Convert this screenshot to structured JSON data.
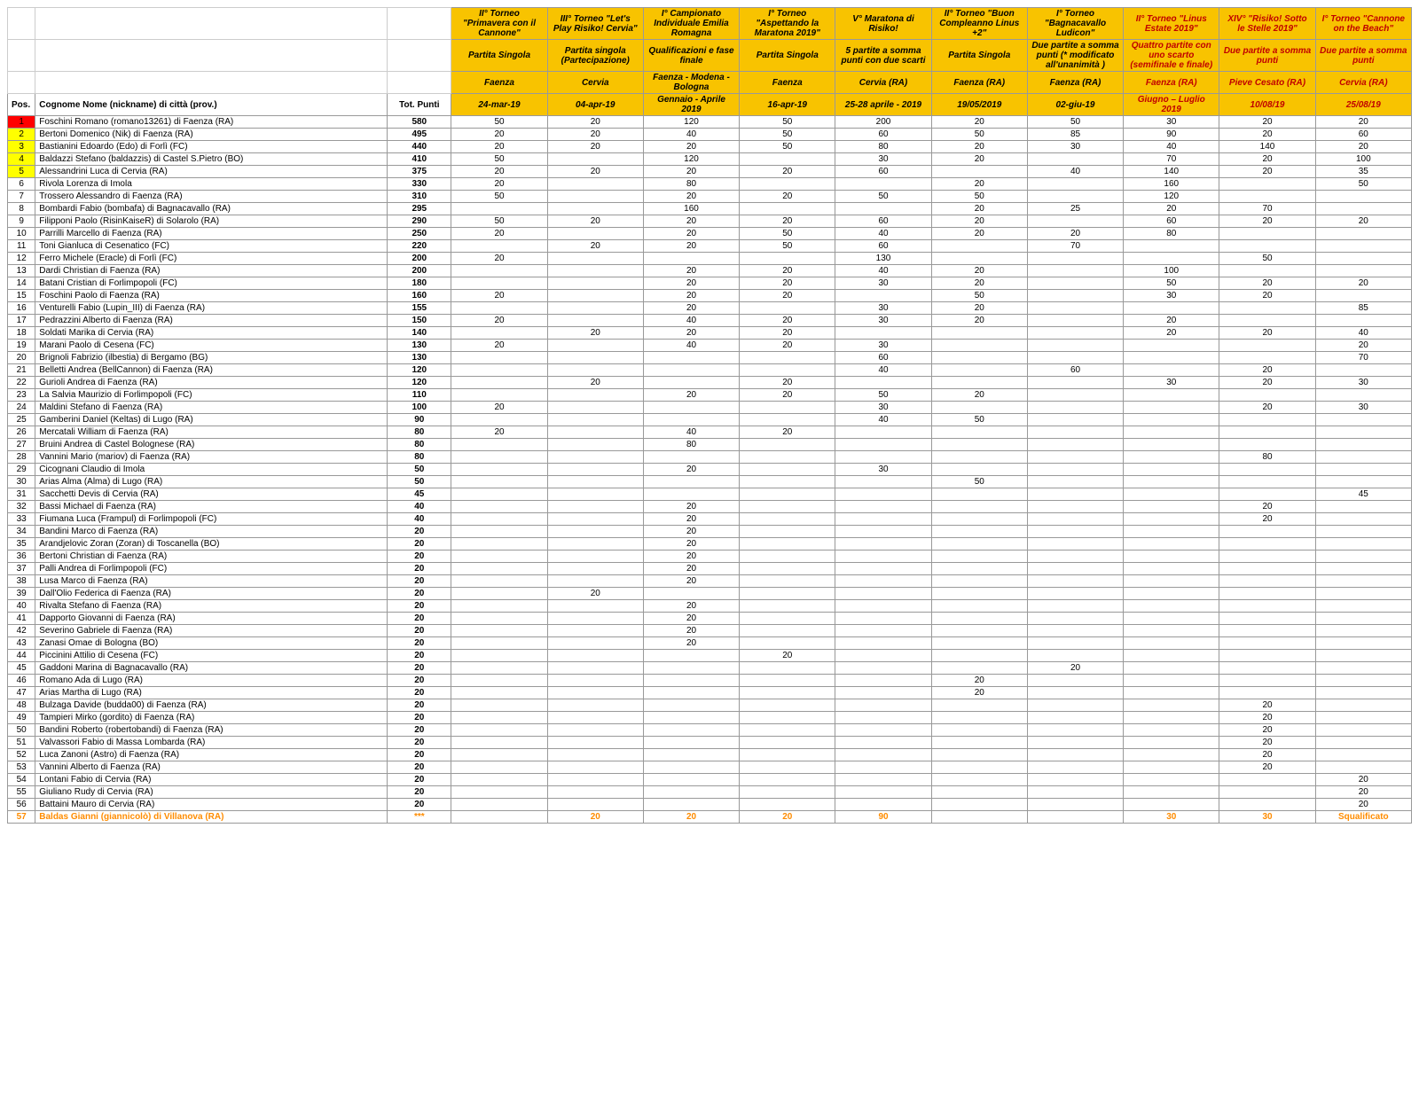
{
  "header_labels": {
    "pos": "Pos.",
    "name": "Cognome Nome (nickname) di città (prov.)",
    "tot": "Tot. Punti"
  },
  "events": [
    {
      "title": "II° Torneo \"Primavera con il Cannone\"",
      "sub": "Partita Singola",
      "loc": "Faenza",
      "date": "24-mar-19"
    },
    {
      "title": "III° Torneo \"Let's Play Risiko! Cervia\"",
      "sub": "Partita singola (Partecipazione)",
      "loc": "Cervia",
      "date": "04-apr-19"
    },
    {
      "title": "I° Campionato Individuale Emilia Romagna",
      "sub": "Qualificazioni e fase finale",
      "loc": "Faenza - Modena - Bologna",
      "date": "Gennaio - Aprile 2019"
    },
    {
      "title": "I° Torneo \"Aspettando la Maratona 2019\"",
      "sub": "Partita Singola",
      "loc": "Faenza",
      "date": "16-apr-19"
    },
    {
      "title": "V° Maratona di Risiko!",
      "sub": "5 partite a somma punti con due scarti",
      "loc": "Cervia (RA)",
      "date": "25-28 aprile - 2019"
    },
    {
      "title": "II° Torneo \"Buon Compleanno Linus +2\"",
      "sub": "Partita Singola",
      "loc": "Faenza (RA)",
      "date": "19/05/2019"
    },
    {
      "title": "I° Torneo \"Bagnacavallo Ludicon\"",
      "sub": "Due partite a somma punti (* modificato all'unanimità )",
      "loc": "Faenza (RA)",
      "date": "02-giu-19"
    },
    {
      "title": "II° Torneo \"Linus Estate 2019\"",
      "sub": "Quattro partite con uno scarto (semifinale e finale)",
      "loc": "Faenza (RA)",
      "date": "Giugno – Luglio 2019",
      "red": true
    },
    {
      "title": "XIV° \"Risiko! Sotto le Stelle 2019\"",
      "sub": "Due partite a somma punti",
      "loc": "Pieve Cesato (RA)",
      "date": "10/08/19",
      "red": true
    },
    {
      "title": "I° Torneo \"Cannone on the Beach\"",
      "sub": "Due partite a somma punti",
      "loc": "Cervia (RA)",
      "date": "25/08/19",
      "red": true
    }
  ],
  "pos_colors": {
    "1": "#ff0000",
    "2": "#ffff00",
    "3": "#ffff00",
    "4": "#ffff00",
    "5": "#ffff00"
  },
  "row_text_colors": {
    "57": "#ff8c00"
  },
  "rows": [
    {
      "pos": 1,
      "name": "Foschini Romano (romano13261) di Faenza (RA)",
      "tot": "580",
      "v": [
        "50",
        "20",
        "120",
        "50",
        "200",
        "20",
        "50",
        "30",
        "20",
        "20"
      ]
    },
    {
      "pos": 2,
      "name": "Bertoni Domenico (Nik) di Faenza (RA)",
      "tot": "495",
      "v": [
        "20",
        "20",
        "40",
        "50",
        "60",
        "50",
        "85",
        "90",
        "20",
        "60"
      ]
    },
    {
      "pos": 3,
      "name": "Bastianini Edoardo (Edo) di Forlì (FC)",
      "tot": "440",
      "v": [
        "20",
        "20",
        "20",
        "50",
        "80",
        "20",
        "30",
        "40",
        "140",
        "20"
      ]
    },
    {
      "pos": 4,
      "name": "Baldazzi Stefano (baldazzis) di Castel S.Pietro (BO)",
      "tot": "410",
      "v": [
        "50",
        "",
        "120",
        "",
        "30",
        "20",
        "",
        "70",
        "20",
        "100"
      ]
    },
    {
      "pos": 5,
      "name": "Alessandrini Luca di Cervia (RA)",
      "tot": "375",
      "v": [
        "20",
        "20",
        "20",
        "20",
        "60",
        "",
        "40",
        "140",
        "20",
        "35"
      ]
    },
    {
      "pos": 6,
      "name": "Rivola Lorenza di Imola",
      "tot": "330",
      "v": [
        "20",
        "",
        "80",
        "",
        "",
        "20",
        "",
        "160",
        "",
        "50"
      ]
    },
    {
      "pos": 7,
      "name": "Trossero Alessandro di Faenza (RA)",
      "tot": "310",
      "v": [
        "50",
        "",
        "20",
        "20",
        "50",
        "50",
        "",
        "120",
        "",
        ""
      ]
    },
    {
      "pos": 8,
      "name": "Bombardi Fabio (bombafa) di Bagnacavallo (RA)",
      "tot": "295",
      "v": [
        "",
        "",
        "160",
        "",
        "",
        "20",
        "25",
        "20",
        "70",
        ""
      ]
    },
    {
      "pos": 9,
      "name": "Filipponi Paolo (RisinKaiseR) di Solarolo (RA)",
      "tot": "290",
      "v": [
        "50",
        "20",
        "20",
        "20",
        "60",
        "20",
        "",
        "60",
        "20",
        "20"
      ]
    },
    {
      "pos": 10,
      "name": "Parrilli Marcello di Faenza (RA)",
      "tot": "250",
      "v": [
        "20",
        "",
        "20",
        "50",
        "40",
        "20",
        "20",
        "80",
        "",
        ""
      ]
    },
    {
      "pos": 11,
      "name": "Toni Gianluca di Cesenatico (FC)",
      "tot": "220",
      "v": [
        "",
        "20",
        "20",
        "50",
        "60",
        "",
        "70",
        "",
        "",
        ""
      ]
    },
    {
      "pos": 12,
      "name": "Ferro Michele (Eracle) di Forlì (FC)",
      "tot": "200",
      "v": [
        "20",
        "",
        "",
        "",
        "130",
        "",
        "",
        "",
        "50",
        ""
      ]
    },
    {
      "pos": 13,
      "name": "Dardi Christian di Faenza (RA)",
      "tot": "200",
      "v": [
        "",
        "",
        "20",
        "20",
        "40",
        "20",
        "",
        "100",
        "",
        ""
      ]
    },
    {
      "pos": 14,
      "name": "Batani Cristian di Forlimpopoli (FC)",
      "tot": "180",
      "v": [
        "",
        "",
        "20",
        "20",
        "30",
        "20",
        "",
        "50",
        "20",
        "20"
      ]
    },
    {
      "pos": 15,
      "name": "Foschini Paolo di Faenza (RA)",
      "tot": "160",
      "v": [
        "20",
        "",
        "20",
        "20",
        "",
        "50",
        "",
        "30",
        "20",
        ""
      ]
    },
    {
      "pos": 16,
      "name": "Venturelli Fabio (Lupin_III) di Faenza (RA)",
      "tot": "155",
      "v": [
        "",
        "",
        "20",
        "",
        "30",
        "20",
        "",
        "",
        "",
        "85"
      ]
    },
    {
      "pos": 17,
      "name": "Pedrazzini Alberto di Faenza (RA)",
      "tot": "150",
      "v": [
        "20",
        "",
        "40",
        "20",
        "30",
        "20",
        "",
        "20",
        "",
        ""
      ]
    },
    {
      "pos": 18,
      "name": "Soldati Marika di Cervia (RA)",
      "tot": "140",
      "v": [
        "",
        "20",
        "20",
        "20",
        "",
        "",
        "",
        "20",
        "20",
        "40"
      ]
    },
    {
      "pos": 19,
      "name": "Marani Paolo di Cesena (FC)",
      "tot": "130",
      "v": [
        "20",
        "",
        "40",
        "20",
        "30",
        "",
        "",
        "",
        "",
        "20"
      ]
    },
    {
      "pos": 20,
      "name": "Brignoli Fabrizio (ilbestia) di Bergamo (BG)",
      "tot": "130",
      "v": [
        "",
        "",
        "",
        "",
        "60",
        "",
        "",
        "",
        "",
        "70"
      ]
    },
    {
      "pos": 21,
      "name": "Belletti Andrea (BellCannon) di Faenza (RA)",
      "tot": "120",
      "v": [
        "",
        "",
        "",
        "",
        "40",
        "",
        "60",
        "",
        "20",
        ""
      ]
    },
    {
      "pos": 22,
      "name": "Gurioli Andrea di Faenza (RA)",
      "tot": "120",
      "v": [
        "",
        "20",
        "",
        "20",
        "",
        "",
        "",
        "30",
        "20",
        "30"
      ]
    },
    {
      "pos": 23,
      "name": "La Salvia Maurizio di Forlimpopoli (FC)",
      "tot": "110",
      "v": [
        "",
        "",
        "20",
        "20",
        "50",
        "20",
        "",
        "",
        "",
        ""
      ]
    },
    {
      "pos": 24,
      "name": "Maldini Stefano di Faenza (RA)",
      "tot": "100",
      "v": [
        "20",
        "",
        "",
        "",
        "30",
        "",
        "",
        "",
        "20",
        "30"
      ]
    },
    {
      "pos": 25,
      "name": "Gamberini Daniel (Keltas) di Lugo (RA)",
      "tot": "90",
      "v": [
        "",
        "",
        "",
        "",
        "40",
        "50",
        "",
        "",
        "",
        ""
      ]
    },
    {
      "pos": 26,
      "name": "Mercatali William di Faenza (RA)",
      "tot": "80",
      "v": [
        "20",
        "",
        "40",
        "20",
        "",
        "",
        "",
        "",
        "",
        ""
      ]
    },
    {
      "pos": 27,
      "name": "Bruini Andrea di Castel Bolognese (RA)",
      "tot": "80",
      "v": [
        "",
        "",
        "80",
        "",
        "",
        "",
        "",
        "",
        "",
        ""
      ]
    },
    {
      "pos": 28,
      "name": "Vannini Mario (mariov) di Faenza (RA)",
      "tot": "80",
      "v": [
        "",
        "",
        "",
        "",
        "",
        "",
        "",
        "",
        "80",
        ""
      ]
    },
    {
      "pos": 29,
      "name": "Cicognani Claudio di Imola",
      "tot": "50",
      "v": [
        "",
        "",
        "20",
        "",
        "30",
        "",
        "",
        "",
        "",
        ""
      ]
    },
    {
      "pos": 30,
      "name": "Arias Alma (Alma) di Lugo (RA)",
      "tot": "50",
      "v": [
        "",
        "",
        "",
        "",
        "",
        "50",
        "",
        "",
        "",
        ""
      ]
    },
    {
      "pos": 31,
      "name": "Sacchetti Devis di Cervia (RA)",
      "tot": "45",
      "v": [
        "",
        "",
        "",
        "",
        "",
        "",
        "",
        "",
        "",
        "45"
      ]
    },
    {
      "pos": 32,
      "name": "Bassi Michael di Faenza (RA)",
      "tot": "40",
      "v": [
        "",
        "",
        "20",
        "",
        "",
        "",
        "",
        "",
        "20",
        ""
      ]
    },
    {
      "pos": 33,
      "name": "Fiumana Luca (Frampul) di Forlimpopoli (FC)",
      "tot": "40",
      "v": [
        "",
        "",
        "20",
        "",
        "",
        "",
        "",
        "",
        "20",
        ""
      ]
    },
    {
      "pos": 34,
      "name": "Bandini Marco di Faenza (RA)",
      "tot": "20",
      "v": [
        "",
        "",
        "20",
        "",
        "",
        "",
        "",
        "",
        "",
        ""
      ]
    },
    {
      "pos": 35,
      "name": "Arandjelovic Zoran (Zoran) di Toscanella (BO)",
      "tot": "20",
      "v": [
        "",
        "",
        "20",
        "",
        "",
        "",
        "",
        "",
        "",
        ""
      ]
    },
    {
      "pos": 36,
      "name": "Bertoni Christian di Faenza (RA)",
      "tot": "20",
      "v": [
        "",
        "",
        "20",
        "",
        "",
        "",
        "",
        "",
        "",
        ""
      ]
    },
    {
      "pos": 37,
      "name": "Palli Andrea di Forlimpopoli (FC)",
      "tot": "20",
      "v": [
        "",
        "",
        "20",
        "",
        "",
        "",
        "",
        "",
        "",
        ""
      ]
    },
    {
      "pos": 38,
      "name": "Lusa Marco di Faenza (RA)",
      "tot": "20",
      "v": [
        "",
        "",
        "20",
        "",
        "",
        "",
        "",
        "",
        "",
        ""
      ]
    },
    {
      "pos": 39,
      "name": "Dall'Olio Federica di Faenza (RA)",
      "tot": "20",
      "v": [
        "",
        "20",
        "",
        "",
        "",
        "",
        "",
        "",
        "",
        ""
      ]
    },
    {
      "pos": 40,
      "name": "Rivalta Stefano di Faenza (RA)",
      "tot": "20",
      "v": [
        "",
        "",
        "20",
        "",
        "",
        "",
        "",
        "",
        "",
        ""
      ]
    },
    {
      "pos": 41,
      "name": "Dapporto Giovanni di Faenza (RA)",
      "tot": "20",
      "v": [
        "",
        "",
        "20",
        "",
        "",
        "",
        "",
        "",
        "",
        ""
      ]
    },
    {
      "pos": 42,
      "name": "Severino Gabriele di Faenza (RA)",
      "tot": "20",
      "v": [
        "",
        "",
        "20",
        "",
        "",
        "",
        "",
        "",
        "",
        ""
      ]
    },
    {
      "pos": 43,
      "name": "Zanasi Omae di Bologna (BO)",
      "tot": "20",
      "v": [
        "",
        "",
        "20",
        "",
        "",
        "",
        "",
        "",
        "",
        ""
      ]
    },
    {
      "pos": 44,
      "name": "Piccinini Attilio di Cesena (FC)",
      "tot": "20",
      "v": [
        "",
        "",
        "",
        "20",
        "",
        "",
        "",
        "",
        "",
        ""
      ]
    },
    {
      "pos": 45,
      "name": "Gaddoni Marina di Bagnacavallo (RA)",
      "tot": "20",
      "v": [
        "",
        "",
        "",
        "",
        "",
        "",
        "20",
        "",
        "",
        ""
      ]
    },
    {
      "pos": 46,
      "name": "Romano Ada di Lugo (RA)",
      "tot": "20",
      "v": [
        "",
        "",
        "",
        "",
        "",
        "20",
        "",
        "",
        "",
        ""
      ]
    },
    {
      "pos": 47,
      "name": "Arias Martha di Lugo (RA)",
      "tot": "20",
      "v": [
        "",
        "",
        "",
        "",
        "",
        "20",
        "",
        "",
        "",
        ""
      ]
    },
    {
      "pos": 48,
      "name": "Bulzaga Davide (budda00) di Faenza (RA)",
      "tot": "20",
      "v": [
        "",
        "",
        "",
        "",
        "",
        "",
        "",
        "",
        "20",
        ""
      ]
    },
    {
      "pos": 49,
      "name": "Tampieri Mirko (gordito) di Faenza (RA)",
      "tot": "20",
      "v": [
        "",
        "",
        "",
        "",
        "",
        "",
        "",
        "",
        "20",
        ""
      ]
    },
    {
      "pos": 50,
      "name": "Bandini Roberto (robertobandi) di Faenza (RA)",
      "tot": "20",
      "v": [
        "",
        "",
        "",
        "",
        "",
        "",
        "",
        "",
        "20",
        ""
      ]
    },
    {
      "pos": 51,
      "name": "Valvassori Fabio di Massa Lombarda (RA)",
      "tot": "20",
      "v": [
        "",
        "",
        "",
        "",
        "",
        "",
        "",
        "",
        "20",
        ""
      ]
    },
    {
      "pos": 52,
      "name": "Luca Zanoni (Astro) di Faenza (RA)",
      "tot": "20",
      "v": [
        "",
        "",
        "",
        "",
        "",
        "",
        "",
        "",
        "20",
        ""
      ]
    },
    {
      "pos": 53,
      "name": "Vannini Alberto di Faenza (RA)",
      "tot": "20",
      "v": [
        "",
        "",
        "",
        "",
        "",
        "",
        "",
        "",
        "20",
        ""
      ]
    },
    {
      "pos": 54,
      "name": "Lontani Fabio di Cervia (RA)",
      "tot": "20",
      "v": [
        "",
        "",
        "",
        "",
        "",
        "",
        "",
        "",
        "",
        "20"
      ]
    },
    {
      "pos": 55,
      "name": "Giuliano Rudy di Cervia (RA)",
      "tot": "20",
      "v": [
        "",
        "",
        "",
        "",
        "",
        "",
        "",
        "",
        "",
        "20"
      ]
    },
    {
      "pos": 56,
      "name": "Battaini Mauro di Cervia (RA)",
      "tot": "20",
      "v": [
        "",
        "",
        "",
        "",
        "",
        "",
        "",
        "",
        "",
        "20"
      ]
    },
    {
      "pos": 57,
      "name": "Baldas Gianni (giannicolò) di Villanova (RA)",
      "tot": "***",
      "v": [
        "",
        "20",
        "20",
        "20",
        "90",
        "",
        "",
        "30",
        "30",
        "Squalificato"
      ]
    }
  ]
}
